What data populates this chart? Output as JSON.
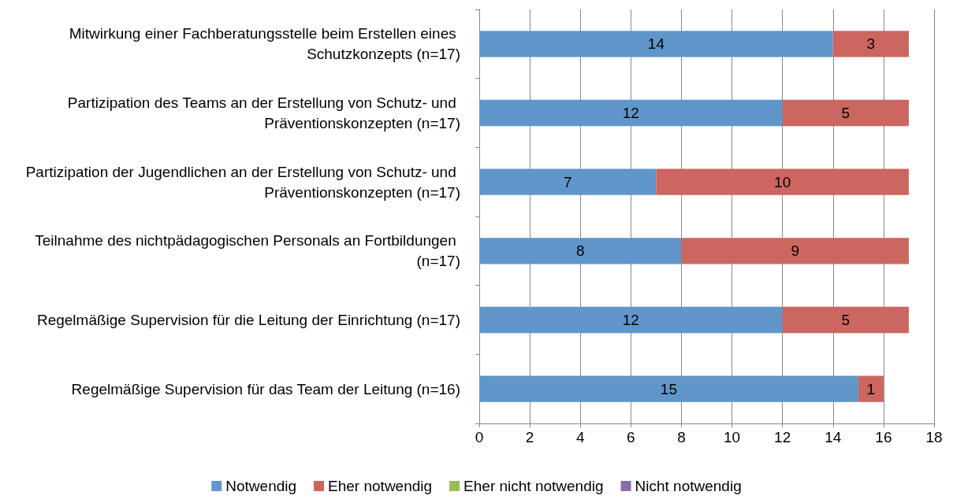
{
  "chart_data": {
    "type": "bar",
    "orientation": "horizontal",
    "stacked": true,
    "categories": [
      "Mitwirkung einer Fachberatungsstelle beim Erstellen eines Schutzkonzepts (n=17)",
      "Partizipation des Teams an der Erstellung von Schutz- und Präventionskonzepten (n=17)",
      "Partizipation der Jugendlichen an der Erstellung von Schutz- und Präventionskonzepten (n=17)",
      "Teilnahme des nichtpädagogischen Personals an Fortbildungen (n=17)",
      "Regelmäßige Supervision für die Leitung der Einrichtung (n=17)",
      "Regelmäßige Supervision für das Team der Leitung (n=16)"
    ],
    "series": [
      {
        "name": "Notwendig",
        "color": "#6096c9",
        "values": [
          14,
          12,
          7,
          8,
          12,
          15
        ],
        "value_labels": [
          "14",
          "12",
          "7",
          "8",
          "12",
          "15"
        ]
      },
      {
        "name": "Eher notwendig",
        "color": "#cc6660",
        "values": [
          3,
          5,
          10,
          9,
          5,
          1
        ],
        "value_labels": [
          "3",
          "5",
          "10",
          "9",
          "5",
          "1"
        ]
      },
      {
        "name": "Eher nicht notwendig",
        "color": "#9bbb59",
        "values": [
          0,
          0,
          0,
          0,
          0,
          0
        ],
        "value_labels": [
          null,
          null,
          null,
          null,
          null,
          null
        ]
      },
      {
        "name": "Nicht notwendig",
        "color": "#8a6bab",
        "values": [
          0,
          0,
          0,
          0,
          0,
          0
        ],
        "value_labels": [
          null,
          null,
          null,
          null,
          null,
          null
        ]
      }
    ],
    "xlim": [
      0,
      18
    ],
    "xticks": [
      0,
      2,
      4,
      6,
      8,
      10,
      12,
      14,
      16,
      18
    ],
    "grid": "x",
    "legend": "bottom"
  }
}
